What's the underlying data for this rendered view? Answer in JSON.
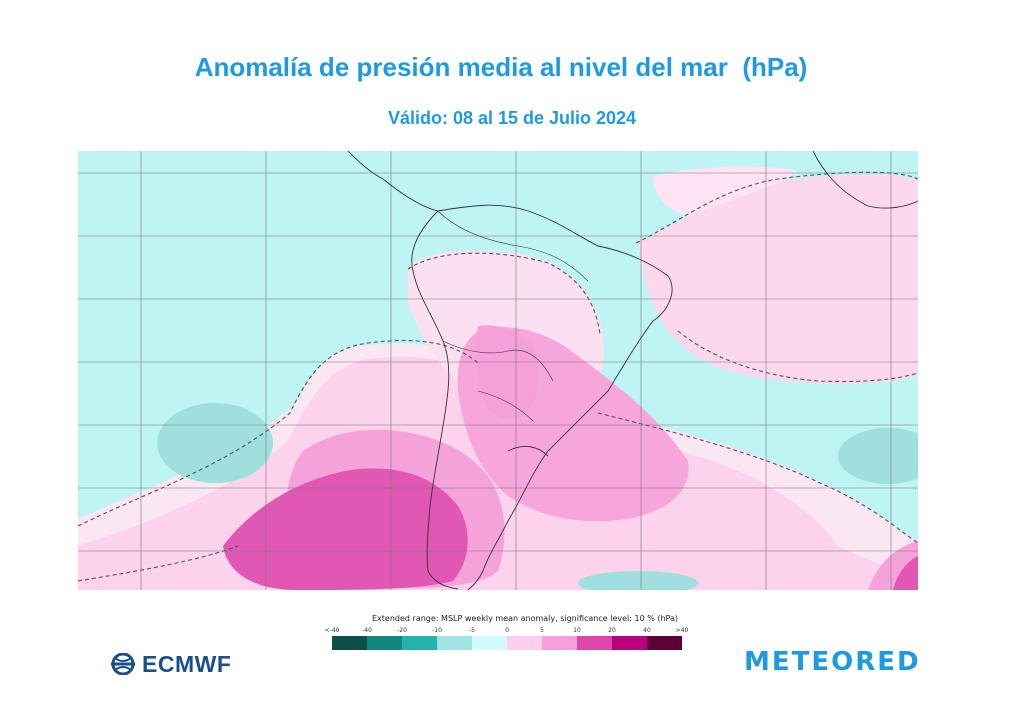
{
  "title": "Anomalía de presión media al nivel del mar  (hPa)",
  "subtitle": "Válido: 08 al 15 de Julio 2024",
  "legend": {
    "title": "Extended range: MSLP weekly mean anomaly, significance level: 10 % (hPa)",
    "labels": [
      "<-40",
      "-40",
      "-20",
      "-10",
      "-5",
      "0",
      "5",
      "10",
      "20",
      "40",
      ">40"
    ],
    "colors": [
      "#0e4f4a",
      "#12877f",
      "#23b3ab",
      "#9fe4e2",
      "#d2fbfb",
      "#fccfee",
      "#f59fdb",
      "#de45ad",
      "#b8007f",
      "#5c0036"
    ]
  },
  "map": {
    "background_color": "#bff4f5",
    "positive_colors": [
      "#fde0f2",
      "#f9b8e3",
      "#e358b6"
    ],
    "negative_colors": [
      "#9fe4e2"
    ],
    "features": [
      "South America",
      "Atlantic Ocean",
      "Pacific Ocean",
      "Africa"
    ]
  },
  "logos": {
    "ecmwf": "ECMWF",
    "meteored": "METEORED"
  }
}
